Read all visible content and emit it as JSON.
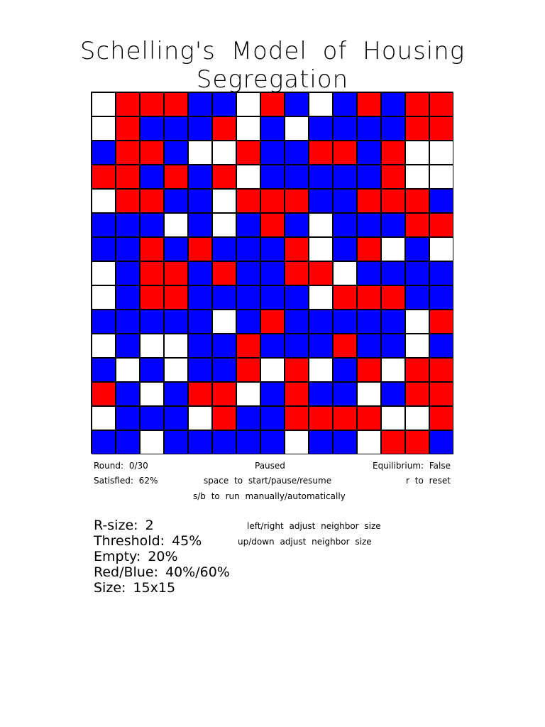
{
  "title": "Schelling's Model of Housing Segregation",
  "colors": {
    "red": "#ff0000",
    "blue": "#0000ff",
    "empty": "#ffffff",
    "grid_line": "#000000"
  },
  "grid": {
    "rows": [
      "ERRRBBERBEBRBRR",
      "ERBBBREBEBBBBRR",
      "BRRBEERBBRRBREE",
      "RRBRBREBBBBBREE",
      "ERRBBERRRBBRRRB",
      "BBBEBEBRBEBBBRR",
      "BBRBRBBBREBREBE",
      "EBRRBRBBRREBBBB",
      "EBRRBBBBBERRRBB",
      "BBBBBEBRBBBBBER",
      "EBEEBBRBBBRBBEB",
      "BEBEBBREREBRERR",
      "RBEBRREBRBBEBRR",
      "EBBBERBBRRRREER",
      "BBEBBBBBEBBERRB"
    ]
  },
  "status": {
    "round": "Round: 0/30",
    "state": "Paused",
    "equilibrium": "Equilibrium: False",
    "satisfied": "Satisfied: 62%",
    "space_hint": "space to start/pause/resume",
    "reset_hint": "r to reset",
    "run_hint": "s/b to run manually/automatically"
  },
  "params": {
    "r_size": "R-size: 2",
    "threshold": "Threshold: 45%",
    "empty": "Empty: 20%",
    "ratio": "Red/Blue: 40%/60%",
    "size": "Size: 15x15"
  },
  "hints": {
    "left_right": "left/right adjust neighbor size",
    "up_down": "up/down adjust neighbor size"
  }
}
